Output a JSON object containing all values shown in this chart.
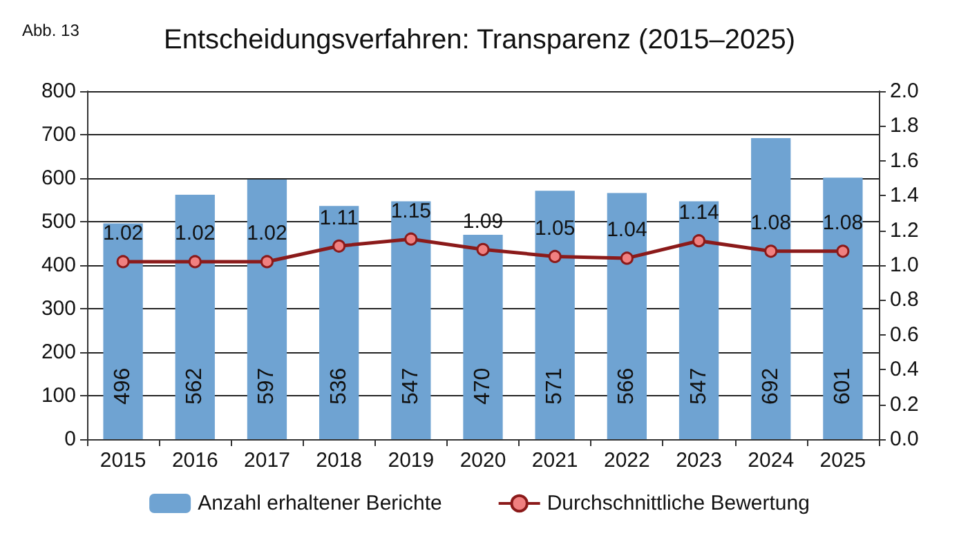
{
  "chart_data": {
    "type": "bar",
    "title": "Entscheidungsverfahren: Transparenz (2015–2025)",
    "annotations": [
      "Abb. 13"
    ],
    "categories": [
      "2015",
      "2016",
      "2017",
      "2018",
      "2019",
      "2020",
      "2021",
      "2022",
      "2023",
      "2024",
      "2025"
    ],
    "series": [
      {
        "name": "Anzahl erhaltener Berichte",
        "color": "#6fa3d2",
        "values": [
          496,
          562,
          597,
          536,
          547,
          470,
          571,
          566,
          547,
          692,
          601
        ]
      },
      {
        "name": "Durchschnittliche Bewertung",
        "type": "line",
        "axis": "y2",
        "color": "#8b1a1a",
        "values": [
          1.02,
          1.02,
          1.02,
          1.11,
          1.15,
          1.09,
          1.05,
          1.04,
          1.14,
          1.08,
          1.08
        ]
      }
    ],
    "ylim": [
      0,
      800
    ],
    "yticks": [
      0,
      100,
      200,
      300,
      400,
      500,
      600,
      700,
      800
    ],
    "y2lim": [
      0,
      2
    ],
    "y2ticks": [
      {
        "value": 0,
        "label": "0.0"
      },
      0.2,
      0.4,
      0.6,
      0.8,
      {
        "value": 1,
        "label": "1.0"
      },
      1.2,
      1.4,
      1.6,
      1.8,
      {
        "value": 2,
        "label": "2.0"
      }
    ],
    "grid": "y",
    "legend": "bottom",
    "data_labels": true,
    "marker": "circle"
  }
}
